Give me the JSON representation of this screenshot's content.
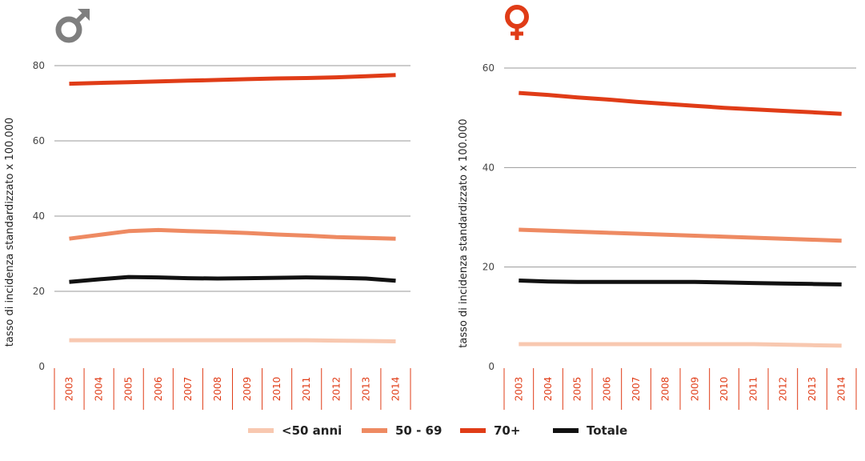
{
  "chart_data": [
    {
      "type": "line",
      "symbol": "male-symbol",
      "symbol_color": "#7f7f7f",
      "ylabel": "tasso di incidenza standardizzato x 100.000",
      "ylim": [
        0,
        82
      ],
      "yticks": [
        0,
        20,
        40,
        60,
        80
      ],
      "categories": [
        "2003",
        "2004",
        "2005",
        "2006",
        "2007",
        "2008",
        "2009",
        "2010",
        "2011",
        "2012",
        "2013",
        "2014"
      ],
      "series": [
        {
          "name": "<50 anni",
          "color": "#f8c8b0",
          "values": [
            7.0,
            7.0,
            7.0,
            7.0,
            7.0,
            7.0,
            7.0,
            7.0,
            7.0,
            6.9,
            6.8,
            6.7
          ]
        },
        {
          "name": "50 - 69",
          "color": "#ee8a62",
          "values": [
            34.0,
            35.0,
            36.0,
            36.3,
            36.0,
            35.8,
            35.5,
            35.1,
            34.8,
            34.4,
            34.2,
            34.0
          ]
        },
        {
          "name": "70+",
          "color": "#e03c17",
          "values": [
            75.2,
            75.4,
            75.6,
            75.8,
            76.0,
            76.2,
            76.4,
            76.6,
            76.7,
            76.9,
            77.2,
            77.5
          ]
        },
        {
          "name": "Totale",
          "color": "#111111",
          "values": [
            22.5,
            23.2,
            23.8,
            23.7,
            23.5,
            23.4,
            23.5,
            23.6,
            23.7,
            23.6,
            23.4,
            22.8
          ]
        }
      ]
    },
    {
      "type": "line",
      "symbol": "female-symbol",
      "symbol_color": "#e03c17",
      "ylabel": "tasso di incidenza standardizzato x 100.000",
      "ylim": [
        0,
        62
      ],
      "yticks": [
        0,
        20,
        40,
        60
      ],
      "categories": [
        "2003",
        "2004",
        "2005",
        "2006",
        "2007",
        "2008",
        "2009",
        "2010",
        "2011",
        "2012",
        "2013",
        "2014"
      ],
      "series": [
        {
          "name": "<50 anni",
          "color": "#f8c8b0",
          "values": [
            4.5,
            4.5,
            4.5,
            4.5,
            4.5,
            4.5,
            4.5,
            4.5,
            4.5,
            4.4,
            4.3,
            4.2
          ]
        },
        {
          "name": "50 - 69",
          "color": "#ee8a62",
          "values": [
            27.5,
            27.3,
            27.1,
            26.9,
            26.7,
            26.5,
            26.3,
            26.1,
            25.9,
            25.7,
            25.5,
            25.3
          ]
        },
        {
          "name": "70+",
          "color": "#e03c17",
          "values": [
            55.0,
            54.6,
            54.1,
            53.7,
            53.2,
            52.8,
            52.4,
            52.0,
            51.7,
            51.4,
            51.1,
            50.8
          ]
        },
        {
          "name": "Totale",
          "color": "#111111",
          "values": [
            17.3,
            17.1,
            17.0,
            17.0,
            17.0,
            17.0,
            17.0,
            16.9,
            16.8,
            16.7,
            16.6,
            16.5
          ]
        }
      ]
    }
  ],
  "legend": [
    {
      "label": "<50 anni",
      "color": "#f8c8b0"
    },
    {
      "label": "50 - 69",
      "color": "#ee8a62"
    },
    {
      "label": "70+",
      "color": "#e03c17"
    },
    {
      "label": "Totale",
      "color": "#111111"
    }
  ]
}
